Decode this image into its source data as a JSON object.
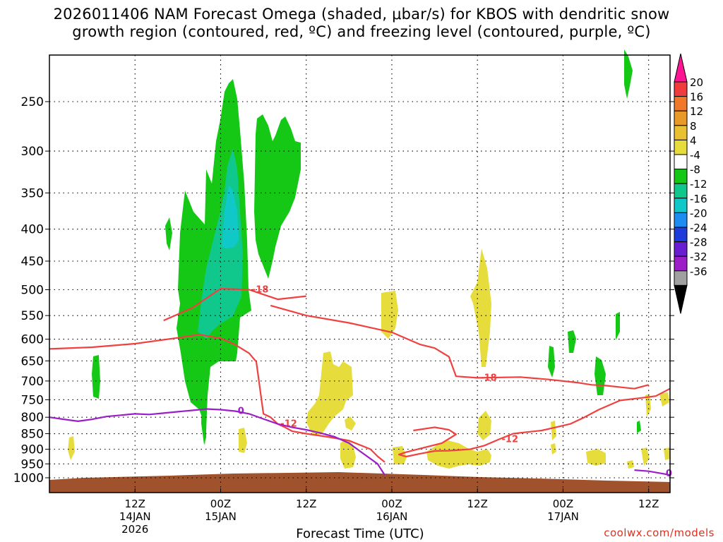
{
  "title_line1": "2026011406 NAM Forecast Omega (shaded, μbar/s) for KBOS with dendritic snow",
  "title_line2": "growth region (contoured, red, ºC) and freezing level (contoured, purple, ºC)",
  "watermark": "coolwx.com/models",
  "chart_data": {
    "type": "contour",
    "xlabel": "Forecast Time (UTC)",
    "ylabel": "",
    "y_scale": "log-pressure (hPa, inverted)",
    "y_ticks": [
      250,
      300,
      350,
      400,
      450,
      500,
      550,
      600,
      650,
      700,
      750,
      800,
      850,
      900,
      950,
      1000
    ],
    "x_range_hours": [
      -6,
      81
    ],
    "x_ticks": [
      {
        "hour": 6,
        "label": "12Z",
        "sub1": "14JAN",
        "sub2": "2026"
      },
      {
        "hour": 18,
        "label": "00Z",
        "sub1": "15JAN",
        "sub2": ""
      },
      {
        "hour": 30,
        "label": "12Z",
        "sub1": "",
        "sub2": ""
      },
      {
        "hour": 42,
        "label": "00Z",
        "sub1": "16JAN",
        "sub2": ""
      },
      {
        "hour": 54,
        "label": "12Z",
        "sub1": "",
        "sub2": ""
      },
      {
        "hour": 66,
        "label": "00Z",
        "sub1": "17JAN",
        "sub2": ""
      },
      {
        "hour": 78,
        "label": "12Z",
        "sub1": "",
        "sub2": ""
      }
    ],
    "grid": true,
    "colorbar": {
      "units": "μbar/s",
      "labels": [
        "20",
        "16",
        "12",
        "8",
        "4",
        "-4",
        "-8",
        "-12",
        "-16",
        "-20",
        "-24",
        "-28",
        "-32",
        "-36"
      ],
      "colors": [
        "#ff1493",
        "#f03c3c",
        "#f07828",
        "#e89a28",
        "#e8c030",
        "#e6dc3c",
        "#ffffff",
        "#16c816",
        "#10c88c",
        "#10c8c8",
        "#1e8cf0",
        "#1e3cdc",
        "#6a1ed2",
        "#9b1ec8",
        "#a0a0a0",
        "#000000"
      ]
    },
    "series": [
      {
        "name": "-18",
        "kind": "isotherm",
        "color": "#f04040",
        "label": "-18",
        "paths": [
          {
            "points": [
              [
                10,
                560
              ],
              [
                14,
                535
              ],
              [
                18,
                498
              ],
              [
                22,
                500
              ],
              [
                26,
                518
              ],
              [
                30,
                512
              ]
            ]
          },
          {
            "points": [
              [
                25,
                530
              ],
              [
                30,
                550
              ],
              [
                36,
                565
              ],
              [
                42,
                585
              ],
              [
                46,
                612
              ],
              [
                48,
                620
              ],
              [
                50,
                640
              ],
              [
                51,
                688
              ],
              [
                54,
                692
              ],
              [
                60,
                690
              ],
              [
                64,
                696
              ],
              [
                68,
                704
              ],
              [
                70,
                710
              ],
              [
                72,
                712
              ],
              [
                76,
                720
              ],
              [
                78,
                710
              ]
            ]
          }
        ]
      },
      {
        "name": "-12",
        "kind": "isotherm",
        "color": "#f04040",
        "label": "-12",
        "paths": [
          {
            "points": [
              [
                -6,
                622
              ],
              [
                0,
                618
              ],
              [
                6,
                610
              ],
              [
                12,
                597
              ],
              [
                15,
                590
              ],
              [
                18,
                598
              ],
              [
                20,
                612
              ],
              [
                22,
                632
              ],
              [
                23,
                652
              ],
              [
                24,
                790
              ],
              [
                25,
                800
              ],
              [
                26,
                820
              ],
              [
                27,
                830
              ],
              [
                28,
                842
              ],
              [
                30,
                850
              ],
              [
                33,
                860
              ],
              [
                36,
                872
              ],
              [
                39,
                900
              ],
              [
                40,
                924
              ],
              [
                41,
                944
              ]
            ]
          },
          {
            "points": [
              [
                45,
                840
              ],
              [
                48,
                830
              ],
              [
                50,
                838
              ],
              [
                51,
                852
              ],
              [
                49,
                880
              ],
              [
                46,
                898
              ],
              [
                44,
                910
              ],
              [
                43,
                918
              ],
              [
                44,
                925
              ],
              [
                46,
                915
              ],
              [
                48,
                906
              ],
              [
                50,
                905
              ],
              [
                53,
                900
              ],
              [
                55,
                888
              ],
              [
                57,
                868
              ],
              [
                59,
                850
              ],
              [
                61,
                845
              ],
              [
                63,
                840
              ],
              [
                65,
                830
              ],
              [
                67,
                820
              ],
              [
                69,
                800
              ],
              [
                71,
                778
              ],
              [
                74,
                752
              ],
              [
                77,
                745
              ],
              [
                79,
                740
              ],
              [
                81,
                720
              ]
            ]
          }
        ]
      },
      {
        "name": "0",
        "kind": "freezing-level",
        "color": "#9b1ec8",
        "label": "0",
        "paths": [
          {
            "points": [
              [
                -6,
                800
              ],
              [
                -4,
                806
              ],
              [
                -2,
                812
              ],
              [
                0,
                806
              ],
              [
                2,
                798
              ],
              [
                4,
                794
              ],
              [
                6,
                790
              ],
              [
                8,
                792
              ],
              [
                10,
                788
              ],
              [
                12,
                784
              ],
              [
                14,
                780
              ],
              [
                16,
                776
              ],
              [
                18,
                778
              ],
              [
                20,
                782
              ],
              [
                22,
                790
              ],
              [
                24,
                805
              ],
              [
                26,
                820
              ],
              [
                28,
                830
              ],
              [
                30,
                838
              ],
              [
                32,
                848
              ],
              [
                34,
                860
              ],
              [
                36,
                880
              ],
              [
                38,
                915
              ],
              [
                40,
                950
              ],
              [
                41,
                990
              ]
            ]
          },
          {
            "points": [
              [
                76,
                972
              ],
              [
                78,
                976
              ],
              [
                80,
                985
              ],
              [
                81,
                990
              ]
            ]
          }
        ]
      }
    ],
    "regions": [
      {
        "type": "omega-ascent",
        "range": "-4 to -8",
        "color": "#16c816",
        "approx_hour": 19,
        "approx_levels_hPa": [
          880,
          230
        ]
      },
      {
        "type": "omega-ascent",
        "range": "-4 to -8",
        "color": "#16c816",
        "approx_hour": 26,
        "approx_levels_hPa": [
          520,
          265
        ]
      },
      {
        "type": "omega-ascent",
        "range": "-8 to -16",
        "color": "#10c8c8",
        "approx_hour": 22,
        "approx_levels_hPa": [
          520,
          340
        ]
      },
      {
        "type": "omega-descent",
        "range": "4 to 8",
        "color": "#e6dc3c",
        "approx_hour": 51,
        "approx_levels_hPa": [
          960,
          430
        ]
      },
      {
        "type": "omega-descent",
        "range": "4 to 8",
        "color": "#e6dc3c",
        "approx_hour": 40,
        "approx_levels_hPa": [
          860,
          630
        ]
      }
    ]
  }
}
